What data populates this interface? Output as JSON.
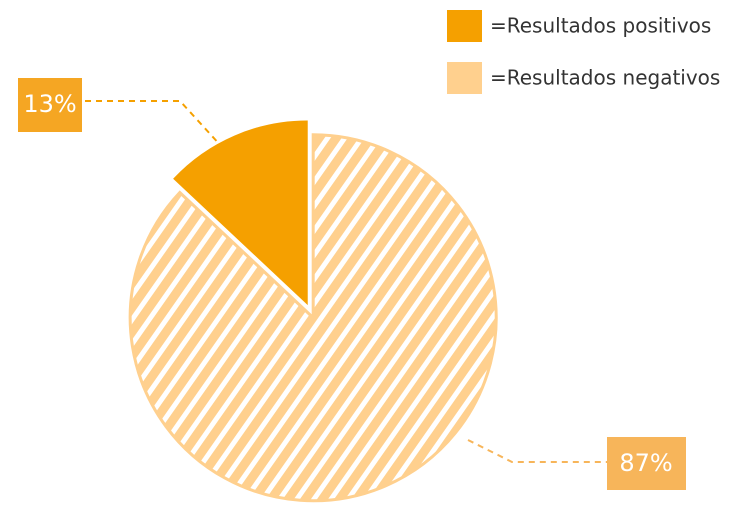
{
  "chart_data": {
    "type": "pie",
    "labels": [
      "=Resultados positivos",
      "=Resultados negativos"
    ],
    "values": [
      13,
      87
    ],
    "value_labels": [
      "13%",
      "87%"
    ],
    "colors": [
      "#f5a000",
      "#ffd08e"
    ]
  }
}
